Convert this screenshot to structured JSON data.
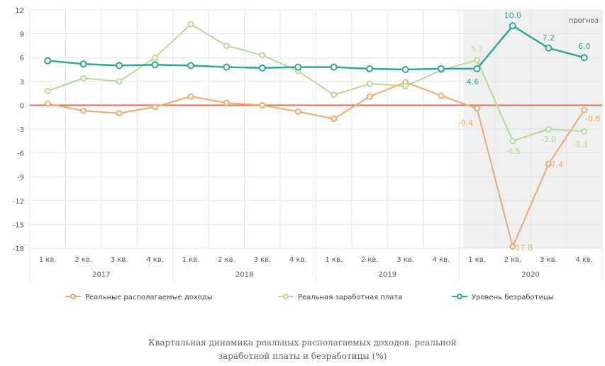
{
  "chart_data": {
    "type": "line",
    "forecast_label": "прогноз",
    "categories": [
      "1 кв.",
      "2 кв.",
      "3 кв.",
      "4 кв.",
      "1 кв.",
      "2 кв.",
      "3 кв.",
      "4 кв.",
      "1 кв.",
      "2 кв.",
      "3 кв.",
      "4 кв.",
      "1 кв.",
      "2 кв.",
      "3 кв.",
      "4 кв."
    ],
    "years": [
      "2017",
      "2018",
      "2019",
      "2020"
    ],
    "ylim": [
      -18,
      12
    ],
    "yticks": [
      12,
      9,
      6,
      3,
      0,
      -3,
      -6,
      -9,
      -12,
      -15,
      -18
    ],
    "grid": true,
    "legend_position": "bottom",
    "series": [
      {
        "name": "Реальные располагаемые доходы",
        "color": "#f5a86b",
        "values": [
          0.2,
          -0.7,
          -1.0,
          -0.2,
          1.1,
          0.3,
          0.0,
          -0.8,
          -1.7,
          1.1,
          2.9,
          1.2,
          -0.4,
          -17.8,
          -7.4,
          -0.6
        ],
        "labels": {
          "12": "-0.4",
          "13": "-17.8",
          "14": "-7.4",
          "15": "-0.6"
        }
      },
      {
        "name": "Реальная заработная плата",
        "color": "#b9d99b",
        "values": [
          1.8,
          3.4,
          3.0,
          6.0,
          10.2,
          7.5,
          6.3,
          4.3,
          1.3,
          2.7,
          2.4,
          4.4,
          5.7,
          -4.5,
          -3.0,
          -3.3
        ],
        "labels": {
          "12": "5.7",
          "13": "-4.5",
          "14": "-3.0",
          "15": "-3.3"
        }
      },
      {
        "name": "Уровень безработицы",
        "color": "#2fa89a",
        "values": [
          5.6,
          5.2,
          5.0,
          5.1,
          5.0,
          4.8,
          4.7,
          4.8,
          4.8,
          4.6,
          4.5,
          4.6,
          4.6,
          10.0,
          7.2,
          6.0
        ],
        "labels": {
          "12": "4.6",
          "13": "10.0",
          "14": "7.2",
          "15": "6.0"
        }
      }
    ]
  },
  "caption": {
    "line1": "Квартальная динамика реальных располагаемых доходов, реальной",
    "line2": "заработной платы и безработицы (%)"
  }
}
